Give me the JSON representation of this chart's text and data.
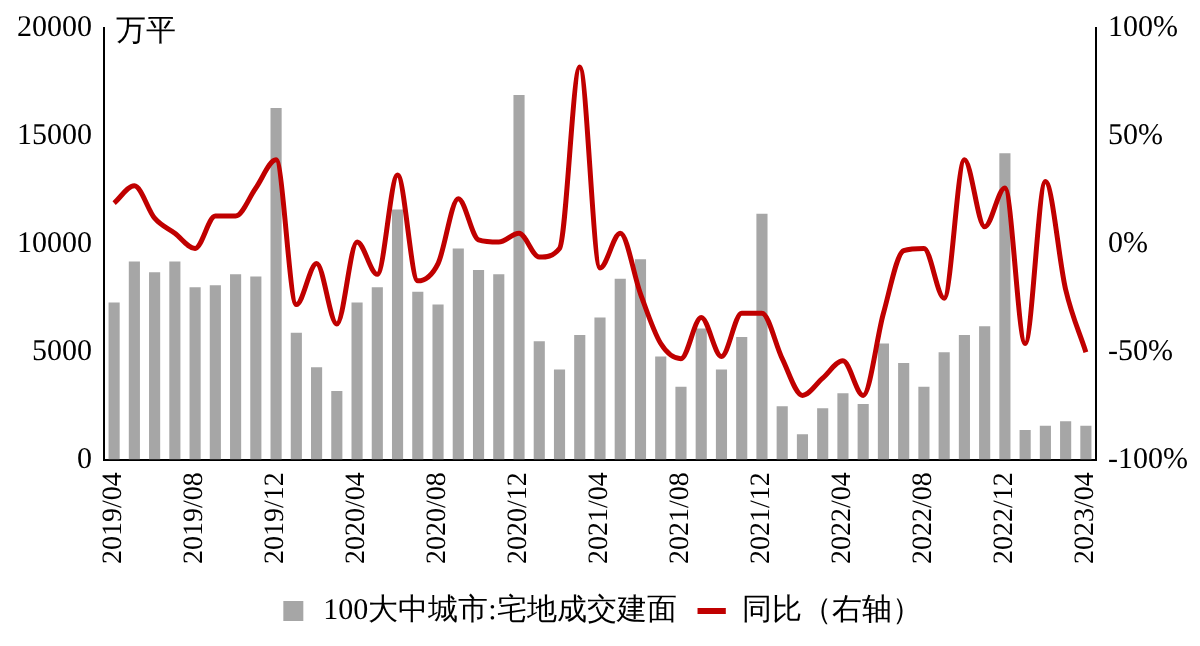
{
  "chart_data": {
    "type": "bar",
    "ylabel": "万平",
    "categories": [
      "2019/04",
      null,
      null,
      null,
      "2019/08",
      null,
      null,
      null,
      "2019/12",
      null,
      null,
      null,
      "2020/04",
      null,
      null,
      null,
      "2020/08",
      null,
      null,
      null,
      "2020/12",
      null,
      null,
      null,
      "2021/04",
      null,
      null,
      null,
      "2021/08",
      null,
      null,
      null,
      "2021/12",
      null,
      null,
      null,
      "2022/04",
      null,
      null,
      null,
      "2022/08",
      null,
      null,
      null,
      "2022/12",
      null,
      null,
      null,
      "2023/04"
    ],
    "series": [
      {
        "name": "100大中城市:宅地成交建面",
        "type": "bar",
        "color": "#a6a6a6",
        "values": [
          7300,
          9200,
          8700,
          9200,
          8000,
          8100,
          8600,
          8500,
          16300,
          5900,
          4300,
          3200,
          7300,
          8000,
          11600,
          7800,
          7200,
          9800,
          8800,
          8600,
          16900,
          5500,
          4200,
          5800,
          6600,
          8400,
          9300,
          4800,
          3400,
          6100,
          4200,
          5700,
          11400,
          2500,
          1200,
          2400,
          3100,
          2600,
          5400,
          4500,
          3400,
          5000,
          5800,
          6200,
          14200,
          1400,
          1600,
          1800,
          1600
        ]
      },
      {
        "name": "同比（右轴）",
        "type": "line",
        "axis": "y2",
        "color": "#c00000",
        "values": [
          19,
          27,
          12,
          5,
          -2,
          13,
          13,
          26,
          39,
          -28,
          -9,
          -37,
          1,
          -14,
          32,
          -17,
          -9,
          21,
          2,
          1,
          5,
          -6,
          -2,
          82,
          -11,
          5,
          -23,
          -46,
          -53,
          -34,
          -52,
          -32,
          -32,
          -53,
          -70,
          -62,
          -54,
          -70,
          -32,
          -3,
          -2,
          -25,
          39,
          8,
          26,
          -46,
          29,
          -21,
          -50
        ]
      }
    ],
    "ylim": [
      0,
      20000
    ],
    "yticks": [
      0,
      5000,
      10000,
      15000,
      20000
    ],
    "y2lim": [
      -100,
      100
    ],
    "y2ticks": [
      {
        "value": -100,
        "label": "-100%"
      },
      {
        "value": -50,
        "label": "-50%"
      },
      {
        "value": 0,
        "label": "0%"
      },
      {
        "value": 50,
        "label": "50%"
      },
      {
        "value": 100,
        "label": "100%"
      }
    ],
    "grid": false,
    "legend": "bottom",
    "line_style": "solid",
    "marker": "none"
  }
}
